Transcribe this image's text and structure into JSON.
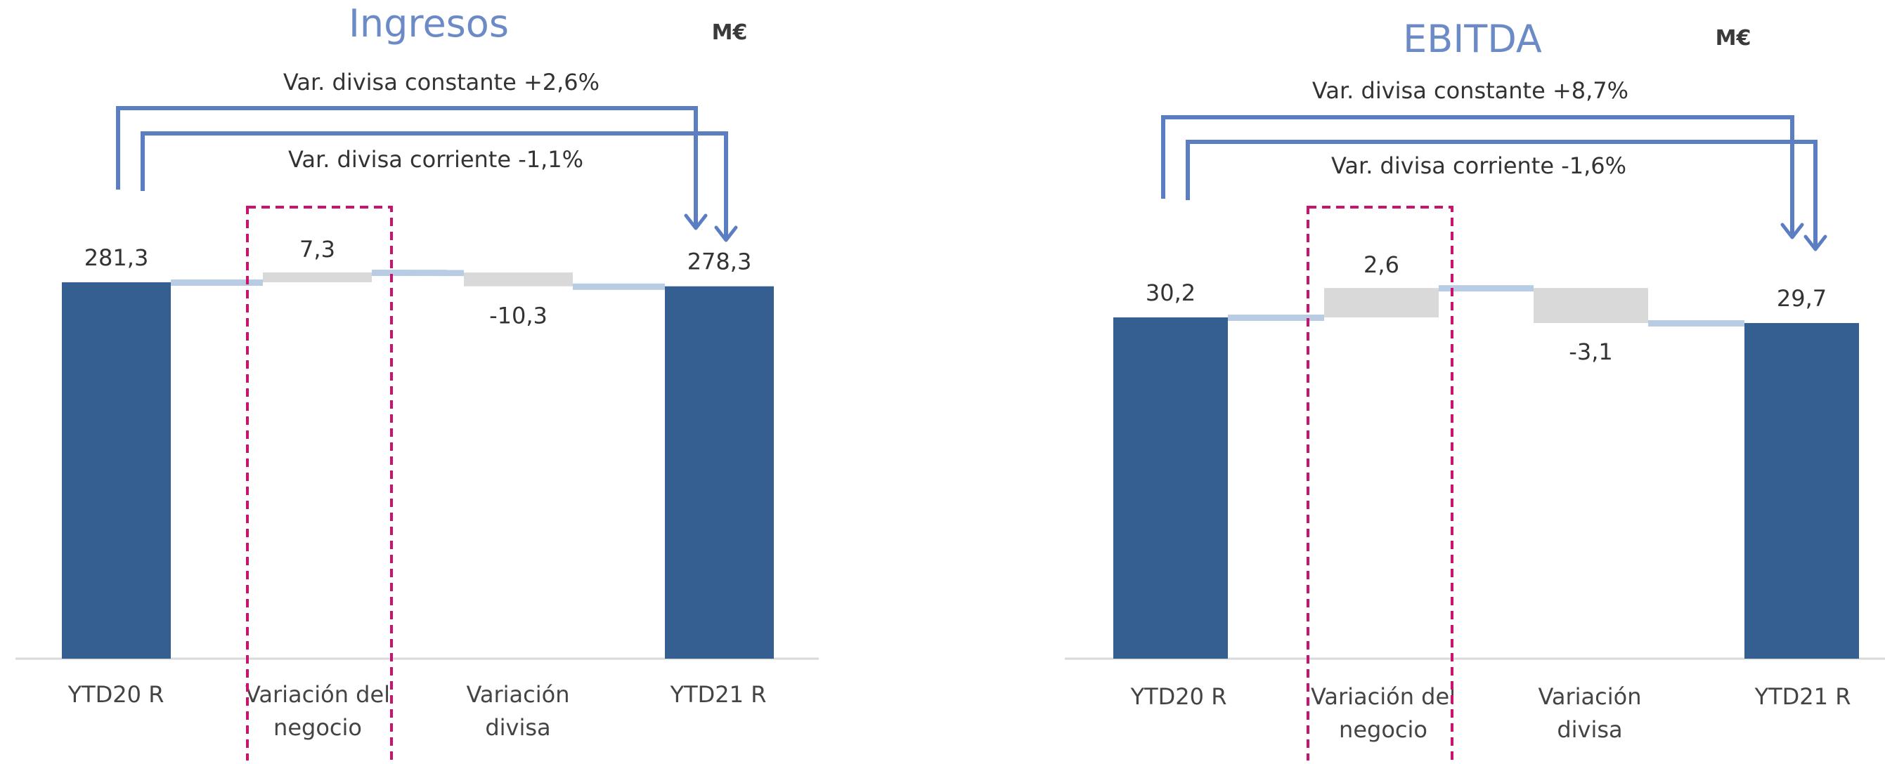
{
  "unit_label": "M€",
  "chart_data": [
    {
      "type": "waterfall",
      "title": "Ingresos",
      "unit": "M€",
      "categories": [
        "YTD20 R",
        "Variación del negocio",
        "Variación divisa",
        "YTD21 R"
      ],
      "category_lines": [
        [
          "YTD20 R"
        ],
        [
          "Variación del",
          "negocio"
        ],
        [
          "Variación",
          "divisa"
        ],
        [
          "YTD21 R"
        ]
      ],
      "values": [
        281.3,
        7.3,
        -10.3,
        278.3
      ],
      "value_labels": [
        "281,3",
        "7,3",
        "-10,3",
        "278,3"
      ],
      "measures": [
        "total",
        "relative",
        "relative",
        "total"
      ],
      "annotations": [
        "Var. divisa constante +2,6%",
        "Var. divisa corriente -1,1%"
      ],
      "highlighted_category": "Variación del negocio",
      "colors": {
        "total": "#355E91",
        "delta": "#D9D9D9",
        "connector": "#B8CCE4",
        "arrow": "#5B7EC2",
        "highlight": "#C8146E",
        "title": "#6C8BC6"
      }
    },
    {
      "type": "waterfall",
      "title": "EBITDA",
      "unit": "M€",
      "categories": [
        "YTD20 R",
        "Variación del negocio",
        "Variación divisa",
        "YTD21 R"
      ],
      "category_lines": [
        [
          "YTD20 R"
        ],
        [
          "Variación del",
          "negocio"
        ],
        [
          "Variación",
          "divisa"
        ],
        [
          "YTD21 R"
        ]
      ],
      "values": [
        30.2,
        2.6,
        -3.1,
        29.7
      ],
      "value_labels": [
        "30,2",
        "2,6",
        "-3,1",
        "29,7"
      ],
      "measures": [
        "total",
        "relative",
        "relative",
        "total"
      ],
      "annotations": [
        "Var. divisa constante +8,7%",
        "Var. divisa corriente -1,6%"
      ],
      "highlighted_category": "Variación del negocio",
      "colors": {
        "total": "#355E91",
        "delta": "#D9D9D9",
        "connector": "#B8CCE4",
        "arrow": "#5B7EC2",
        "highlight": "#C8146E",
        "title": "#6C8BC6"
      }
    }
  ]
}
